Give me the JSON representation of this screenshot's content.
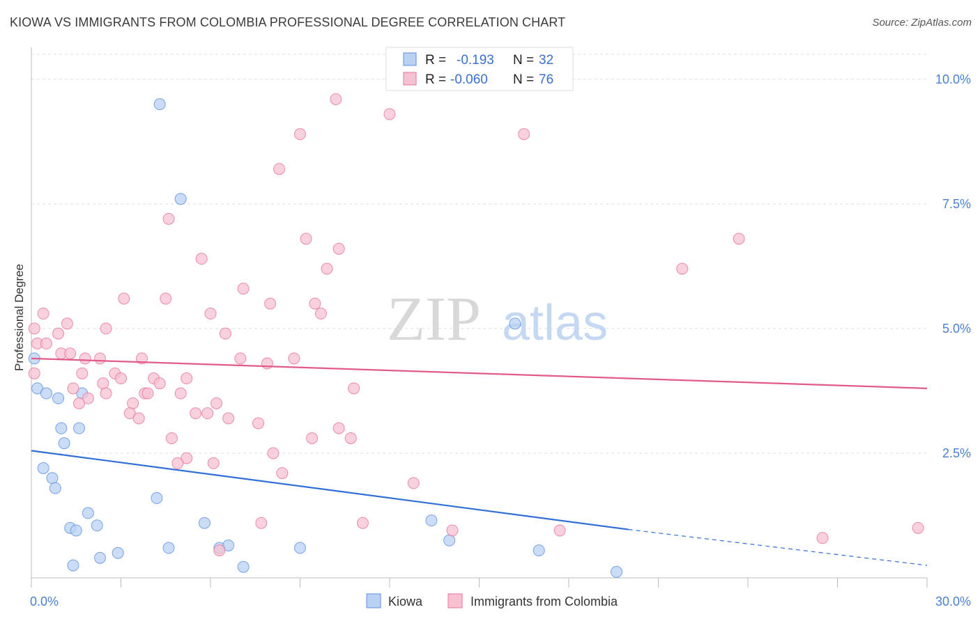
{
  "title": "KIOWA VS IMMIGRANTS FROM COLOMBIA PROFESSIONAL DEGREE CORRELATION CHART",
  "source": "Source: ZipAtlas.com",
  "watermark": {
    "zip": "ZIP",
    "atlas": "atlas"
  },
  "colors": {
    "kiowa": "#5b8fe0",
    "kiowa_fill": "#b9d1f3",
    "colombia": "#e8729a",
    "colombia_fill": "#f6c2d2"
  },
  "legend": {
    "rows": [
      {
        "r_label": "R = ",
        "r_value": "-0.193",
        "n_label": "N = ",
        "n_value": "32"
      },
      {
        "r_label": "R = ",
        "r_value": "-0.060",
        "n_label": "N = ",
        "n_value": "76"
      }
    ]
  },
  "chart_data": {
    "type": "scatter",
    "title": "KIOWA VS IMMIGRANTS FROM COLOMBIA PROFESSIONAL DEGREE CORRELATION CHART",
    "xlabel": "",
    "ylabel": "Professional Degree",
    "xlim": [
      0,
      30
    ],
    "ylim": [
      0,
      10.5
    ],
    "x_tick_labels": [
      "0.0%",
      "30.0%"
    ],
    "y_ticks": [
      2.5,
      5.0,
      7.5,
      10.0
    ],
    "y_tick_labels": [
      "2.5%",
      "5.0%",
      "7.5%",
      "10.0%"
    ],
    "grid": true,
    "legend_position": "top-center",
    "series": [
      {
        "name": "Kiowa",
        "points": [
          [
            0.1,
            4.4
          ],
          [
            0.2,
            3.8
          ],
          [
            0.5,
            3.7
          ],
          [
            0.9,
            3.6
          ],
          [
            1.0,
            3.0
          ],
          [
            1.6,
            3.0
          ],
          [
            1.7,
            3.7
          ],
          [
            1.1,
            2.7
          ],
          [
            0.4,
            2.2
          ],
          [
            0.7,
            2.0
          ],
          [
            0.8,
            1.8
          ],
          [
            4.2,
            1.6
          ],
          [
            1.9,
            1.3
          ],
          [
            1.3,
            1.0
          ],
          [
            2.2,
            1.05
          ],
          [
            1.5,
            0.95
          ],
          [
            5.8,
            1.1
          ],
          [
            13.4,
            1.15
          ],
          [
            14.0,
            0.75
          ],
          [
            17.0,
            0.55
          ],
          [
            2.3,
            0.4
          ],
          [
            2.9,
            0.5
          ],
          [
            1.4,
            0.25
          ],
          [
            4.6,
            0.6
          ],
          [
            6.3,
            0.6
          ],
          [
            6.6,
            0.65
          ],
          [
            9.0,
            0.6
          ],
          [
            7.1,
            0.22
          ],
          [
            19.6,
            0.12
          ],
          [
            4.3,
            9.5
          ],
          [
            5.0,
            7.6
          ],
          [
            16.2,
            5.1
          ]
        ],
        "trend": {
          "x0": 0,
          "y0": 2.55,
          "x1": 20.0,
          "y1": 0.97,
          "dash_to_x": 30,
          "dash_to_y": 0.25
        }
      },
      {
        "name": "Immigrants from Colombia",
        "points": [
          [
            10.2,
            9.6
          ],
          [
            12.0,
            9.3
          ],
          [
            9.0,
            8.9
          ],
          [
            16.5,
            8.9
          ],
          [
            8.3,
            8.2
          ],
          [
            4.6,
            7.2
          ],
          [
            9.2,
            6.8
          ],
          [
            10.3,
            6.6
          ],
          [
            23.7,
            6.8
          ],
          [
            5.7,
            6.4
          ],
          [
            9.9,
            6.2
          ],
          [
            21.8,
            6.2
          ],
          [
            3.1,
            5.6
          ],
          [
            4.5,
            5.6
          ],
          [
            7.1,
            5.8
          ],
          [
            8.0,
            5.5
          ],
          [
            9.5,
            5.5
          ],
          [
            9.7,
            5.3
          ],
          [
            6.0,
            5.3
          ],
          [
            0.4,
            5.3
          ],
          [
            0.1,
            5.0
          ],
          [
            1.2,
            5.1
          ],
          [
            0.9,
            4.9
          ],
          [
            2.5,
            5.0
          ],
          [
            6.5,
            4.9
          ],
          [
            0.2,
            4.7
          ],
          [
            0.5,
            4.7
          ],
          [
            1.0,
            4.5
          ],
          [
            1.3,
            4.5
          ],
          [
            1.8,
            4.4
          ],
          [
            2.3,
            4.4
          ],
          [
            2.4,
            3.9
          ],
          [
            3.7,
            4.4
          ],
          [
            7.0,
            4.4
          ],
          [
            7.9,
            4.3
          ],
          [
            8.8,
            4.4
          ],
          [
            0.1,
            4.1
          ],
          [
            1.7,
            4.1
          ],
          [
            2.8,
            4.1
          ],
          [
            3.0,
            4.0
          ],
          [
            4.1,
            4.0
          ],
          [
            4.3,
            3.9
          ],
          [
            5.2,
            4.0
          ],
          [
            1.4,
            3.8
          ],
          [
            3.8,
            3.7
          ],
          [
            3.9,
            3.7
          ],
          [
            5.0,
            3.7
          ],
          [
            10.8,
            3.8
          ],
          [
            1.9,
            3.6
          ],
          [
            2.5,
            3.7
          ],
          [
            1.6,
            3.5
          ],
          [
            3.4,
            3.5
          ],
          [
            6.2,
            3.5
          ],
          [
            3.3,
            3.3
          ],
          [
            3.6,
            3.2
          ],
          [
            5.5,
            3.3
          ],
          [
            5.9,
            3.3
          ],
          [
            6.6,
            3.2
          ],
          [
            7.6,
            3.1
          ],
          [
            10.3,
            3.0
          ],
          [
            10.7,
            2.8
          ],
          [
            4.7,
            2.8
          ],
          [
            9.4,
            2.8
          ],
          [
            5.2,
            2.4
          ],
          [
            4.9,
            2.3
          ],
          [
            6.1,
            2.3
          ],
          [
            8.1,
            2.5
          ],
          [
            8.4,
            2.1
          ],
          [
            12.8,
            1.9
          ],
          [
            7.7,
            1.1
          ],
          [
            11.1,
            1.1
          ],
          [
            14.1,
            0.95
          ],
          [
            17.7,
            0.95
          ],
          [
            26.5,
            0.8
          ],
          [
            29.7,
            1.0
          ],
          [
            6.3,
            0.55
          ]
        ],
        "trend": {
          "x0": 0,
          "y0": 4.4,
          "x1": 30,
          "y1": 3.8
        }
      }
    ]
  },
  "bottom_legend": [
    {
      "label": "Kiowa"
    },
    {
      "label": "Immigrants from Colombia"
    }
  ]
}
